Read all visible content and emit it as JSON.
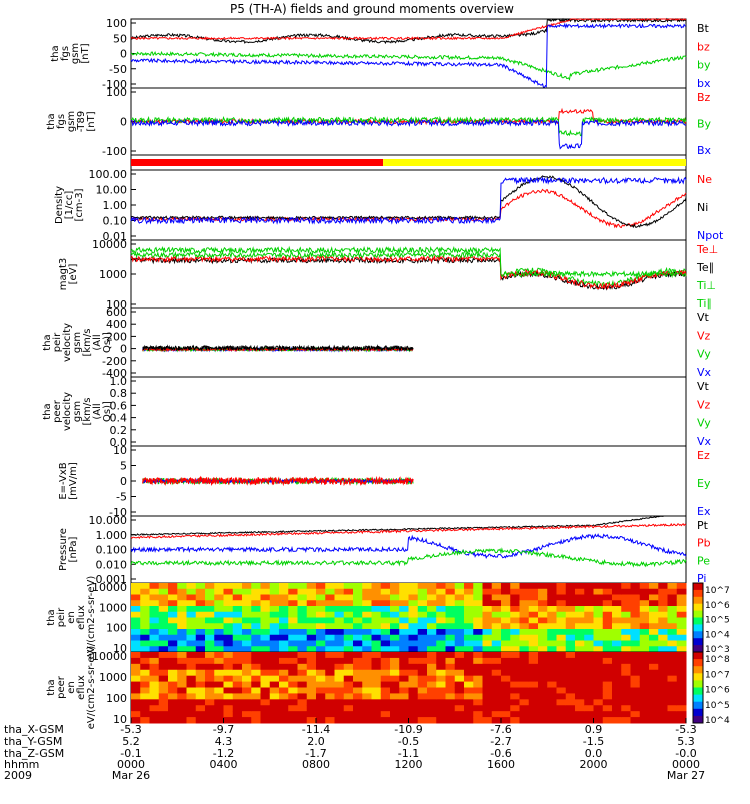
{
  "title": "P5 (TH-A) fields and ground moments overview",
  "colors": {
    "black": "#000000",
    "red": "#ff0000",
    "green": "#00d000",
    "blue": "#0000ff",
    "yellow": "#ffff00"
  },
  "time_axis": {
    "ticks": [
      {
        "hhmm": "0000",
        "date": "Mar 26",
        "x_gsm": "-5.3",
        "y_gsm": "5.2",
        "z_gsm": "-0.1"
      },
      {
        "hhmm": "0400",
        "date": "",
        "x_gsm": "-9.7",
        "y_gsm": "4.3",
        "z_gsm": "-1.2"
      },
      {
        "hhmm": "0800",
        "date": "",
        "x_gsm": "-11.4",
        "y_gsm": "2.0",
        "z_gsm": "-1.7"
      },
      {
        "hhmm": "1200",
        "date": "",
        "x_gsm": "-10.9",
        "y_gsm": "-0.5",
        "z_gsm": "-1.1"
      },
      {
        "hhmm": "1600",
        "date": "",
        "x_gsm": "-7.6",
        "y_gsm": "-2.7",
        "z_gsm": "-0.6"
      },
      {
        "hhmm": "2000",
        "date": "",
        "x_gsm": "0.9",
        "y_gsm": "-1.5",
        "z_gsm": "0.0"
      },
      {
        "hhmm": "0000",
        "date": "Mar 27",
        "x_gsm": "-5.3",
        "y_gsm": "5.3",
        "z_gsm": "-0.0"
      }
    ],
    "row_labels": [
      "tha_X-GSM",
      "tha_Y-GSM",
      "tha_Z-GSM",
      "hhmm",
      "2009"
    ]
  },
  "chart_data": [
    {
      "type": "line",
      "ylabel": "tha fgs gsm [nT]",
      "ylim": [
        -100,
        100
      ],
      "yticks": [
        "100",
        "50",
        "0",
        "-50",
        "-100"
      ],
      "series": [
        {
          "name": "Bt",
          "color": "#000000"
        },
        {
          "name": "bz",
          "color": "#ff0000"
        },
        {
          "name": "by",
          "color": "#00d000"
        },
        {
          "name": "bx",
          "color": "#0000ff"
        }
      ]
    },
    {
      "type": "line",
      "ylabel": "tha fgs gsm -T89 [nT]",
      "ylim": [
        -120,
        120
      ],
      "yticks": [
        "100",
        "0",
        "-100"
      ],
      "series": [
        {
          "name": "Bz",
          "color": "#ff0000"
        },
        {
          "name": "By",
          "color": "#00d000"
        },
        {
          "name": "Bx",
          "color": "#0000ff"
        }
      ]
    },
    {
      "type": "bar",
      "ylabel": "",
      "note": "region bar",
      "segments": [
        {
          "from_hour": 0,
          "to_hour": 10.9,
          "color": "#ff0000"
        },
        {
          "from_hour": 10.9,
          "to_hour": 24,
          "color": "#ffff00"
        }
      ]
    },
    {
      "type": "line",
      "ylabel": "Density [1/cc] [cm-3]",
      "scale": "log",
      "yticks": [
        "100.00",
        "10.00",
        "1.00",
        "0.10",
        "0.01"
      ],
      "series": [
        {
          "name": "Ne",
          "color": "#ff0000"
        },
        {
          "name": "Ni",
          "color": "#000000"
        },
        {
          "name": "Npot",
          "color": "#0000ff"
        }
      ]
    },
    {
      "type": "line",
      "ylabel": "magt3 [eV]",
      "scale": "log",
      "yticks": [
        "10000",
        "1000",
        "100"
      ],
      "series": [
        {
          "name": "Te⊥",
          "color": "#ff0000"
        },
        {
          "name": "Te∥",
          "color": "#000000"
        },
        {
          "name": "Ti⊥",
          "color": "#00d000"
        },
        {
          "name": "Ti∥",
          "color": "#00d000"
        }
      ]
    },
    {
      "type": "line",
      "ylabel": "tha peir velocity gsm [km/s (All Qs)]",
      "ylim": [
        -400,
        600
      ],
      "yticks": [
        "600",
        "400",
        "200",
        "0",
        "-200",
        "-400"
      ],
      "series": [
        {
          "name": "Vt",
          "color": "#000000"
        },
        {
          "name": "Vz",
          "color": "#ff0000"
        },
        {
          "name": "Vy",
          "color": "#00d000"
        },
        {
          "name": "Vx",
          "color": "#0000ff"
        }
      ]
    },
    {
      "type": "line",
      "ylabel": "tha peer velocity gsm [km/s (All Qs)]",
      "ylim": [
        0,
        1
      ],
      "yticks": [
        "1.0",
        "0.8",
        "0.6",
        "0.4",
        "0.2",
        "0.0"
      ],
      "series": [
        {
          "name": "Vt",
          "color": "#000000"
        },
        {
          "name": "Vz",
          "color": "#ff0000"
        },
        {
          "name": "Vy",
          "color": "#00d000"
        },
        {
          "name": "Vx",
          "color": "#0000ff"
        }
      ]
    },
    {
      "type": "line",
      "ylabel": "E=-VxB [mV/m]",
      "ylim": [
        -10,
        10
      ],
      "yticks": [
        "10",
        "5",
        "0",
        "-5",
        "-10"
      ],
      "series": [
        {
          "name": "Ez",
          "color": "#ff0000"
        },
        {
          "name": "Ey",
          "color": "#00d000"
        },
        {
          "name": "Ex",
          "color": "#0000ff"
        }
      ]
    },
    {
      "type": "line",
      "ylabel": "Pressure [nPa]",
      "scale": "log",
      "yticks": [
        "10.000",
        "1.000",
        "0.100",
        "0.010",
        "0.001"
      ],
      "series": [
        {
          "name": "Pt",
          "color": "#000000"
        },
        {
          "name": "Pb",
          "color": "#ff0000"
        },
        {
          "name": "Pe",
          "color": "#00d000"
        },
        {
          "name": "Pi",
          "color": "#0000ff"
        }
      ]
    },
    {
      "type": "heatmap",
      "ylabel": "tha peir en eflux eV/(cm2-s-sr-eV)",
      "yticks": [
        "10000",
        "1000",
        "100",
        "10"
      ],
      "colorbar": [
        "10^7",
        "10^6",
        "10^5",
        "10^4",
        "10^3"
      ]
    },
    {
      "type": "heatmap",
      "ylabel": "tha peer en eflux eV/(cm2-s-sr-eV)",
      "yticks": [
        "10000",
        "1000",
        "100",
        "10"
      ],
      "colorbar": [
        "10^8",
        "10^7",
        "10^6",
        "10^5",
        "10^4"
      ]
    }
  ]
}
